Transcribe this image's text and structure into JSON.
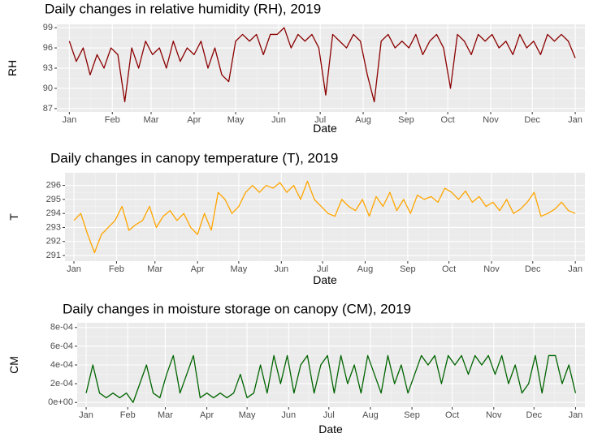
{
  "chart_data": [
    {
      "type": "line",
      "title": "Daily changes in relative humidity (RH), 2019",
      "x_label": "Date",
      "y_label": "RH",
      "x": [
        0,
        5,
        10,
        15,
        20,
        25,
        30,
        35,
        40,
        45,
        50,
        55,
        60,
        65,
        70,
        75,
        80,
        85,
        90,
        95,
        100,
        105,
        110,
        115,
        120,
        125,
        130,
        135,
        140,
        145,
        150,
        155,
        160,
        165,
        170,
        175,
        180,
        185,
        190,
        195,
        200,
        205,
        210,
        215,
        220,
        225,
        230,
        235,
        240,
        245,
        250,
        255,
        260,
        265,
        270,
        275,
        280,
        285,
        290,
        295,
        300,
        305,
        310,
        315,
        320,
        325,
        330,
        335,
        340,
        345,
        350,
        355,
        360,
        365
      ],
      "series": [
        {
          "name": "RH",
          "color": "#8b0000",
          "values": [
            97,
            94,
            96,
            92,
            95,
            93,
            96,
            95,
            88,
            96,
            93,
            97,
            95,
            96,
            93,
            97,
            94,
            96,
            95,
            97,
            93,
            96,
            92,
            91,
            97,
            98,
            97,
            98,
            95,
            98,
            98,
            99,
            96,
            98,
            97,
            98,
            96,
            89,
            98,
            97,
            96,
            98,
            97,
            92,
            88,
            97,
            98,
            96,
            97,
            96,
            98,
            95,
            97,
            98,
            96,
            90,
            98,
            97,
            95,
            98,
            97,
            98,
            96,
            97,
            95,
            98,
            96,
            97,
            95,
            98,
            97,
            98,
            97,
            94.5
          ]
        }
      ],
      "xlim": [
        -9,
        372
      ],
      "xticks": [
        {
          "value": 0,
          "label": "Jan"
        },
        {
          "value": 31,
          "label": "Feb"
        },
        {
          "value": 59,
          "label": "Mar"
        },
        {
          "value": 90,
          "label": "Apr"
        },
        {
          "value": 120,
          "label": "May"
        },
        {
          "value": 151,
          "label": "Jun"
        },
        {
          "value": 181,
          "label": "Jul"
        },
        {
          "value": 212,
          "label": "Aug"
        },
        {
          "value": 243,
          "label": "Sep"
        },
        {
          "value": 273,
          "label": "Oct"
        },
        {
          "value": 304,
          "label": "Nov"
        },
        {
          "value": 334,
          "label": "Dec"
        },
        {
          "value": 365,
          "label": "Jan"
        }
      ],
      "ylim": [
        86.5,
        99.5
      ],
      "yticks": [
        87,
        90,
        93,
        96,
        99
      ],
      "grid": true
    },
    {
      "type": "line",
      "title": "Daily changes in canopy temperature (T), 2019",
      "x_label": "Date",
      "y_label": "T",
      "x": [
        0,
        5,
        10,
        15,
        20,
        25,
        30,
        35,
        40,
        45,
        50,
        55,
        60,
        65,
        70,
        75,
        80,
        85,
        90,
        95,
        100,
        105,
        110,
        115,
        120,
        125,
        130,
        135,
        140,
        145,
        150,
        155,
        160,
        165,
        170,
        175,
        180,
        185,
        190,
        195,
        200,
        205,
        210,
        215,
        220,
        225,
        230,
        235,
        240,
        245,
        250,
        255,
        260,
        265,
        270,
        275,
        280,
        285,
        290,
        295,
        300,
        305,
        310,
        315,
        320,
        325,
        330,
        335,
        340,
        345,
        350,
        355,
        360,
        365
      ],
      "series": [
        {
          "name": "T",
          "color": "#ffa500",
          "values": [
            293.5,
            294,
            292.5,
            291.2,
            292.5,
            293,
            293.5,
            294.5,
            292.8,
            293.2,
            293.5,
            294.5,
            293,
            293.8,
            294.2,
            293.5,
            294,
            293,
            292.5,
            294,
            292.8,
            295.5,
            295,
            294,
            294.5,
            295.5,
            296,
            295.5,
            296,
            295.8,
            296.2,
            295.5,
            296,
            295,
            296.3,
            295,
            294.5,
            294,
            293.8,
            295,
            294.5,
            294.2,
            295,
            293.8,
            295.2,
            294.5,
            295.5,
            294.2,
            295,
            294,
            295.3,
            295,
            295.2,
            294.8,
            295.8,
            295.5,
            295,
            295.6,
            294.8,
            295.2,
            294.5,
            294.8,
            294.2,
            295,
            294,
            294.3,
            294.8,
            295.5,
            293.8,
            294,
            294.3,
            294.8,
            294.2,
            294
          ]
        }
      ],
      "xlim": [
        -6.5,
        372
      ],
      "xticks": [
        {
          "value": 0,
          "label": "Jan"
        },
        {
          "value": 31,
          "label": "Feb"
        },
        {
          "value": 59,
          "label": "Mar"
        },
        {
          "value": 90,
          "label": "Apr"
        },
        {
          "value": 120,
          "label": "May"
        },
        {
          "value": 151,
          "label": "Jun"
        },
        {
          "value": 181,
          "label": "Jul"
        },
        {
          "value": 212,
          "label": "Aug"
        },
        {
          "value": 243,
          "label": "Sep"
        },
        {
          "value": 273,
          "label": "Oct"
        },
        {
          "value": 304,
          "label": "Nov"
        },
        {
          "value": 334,
          "label": "Dec"
        },
        {
          "value": 365,
          "label": "Jan"
        }
      ],
      "ylim": [
        290.6,
        296.9
      ],
      "yticks": [
        291,
        292,
        293,
        294,
        295,
        296
      ],
      "grid": true
    },
    {
      "type": "line",
      "title": "Daily changes in moisture storage on canopy (CM), 2019",
      "x_label": "Date",
      "y_label": "CM",
      "x": [
        0,
        5,
        10,
        15,
        20,
        25,
        30,
        35,
        40,
        45,
        50,
        55,
        60,
        65,
        70,
        75,
        80,
        85,
        90,
        95,
        100,
        105,
        110,
        115,
        120,
        125,
        130,
        135,
        140,
        145,
        150,
        155,
        160,
        165,
        170,
        175,
        180,
        185,
        190,
        195,
        200,
        205,
        210,
        215,
        220,
        225,
        230,
        235,
        240,
        245,
        250,
        255,
        260,
        265,
        270,
        275,
        280,
        285,
        290,
        295,
        300,
        305,
        310,
        315,
        320,
        325,
        330,
        335,
        340,
        345,
        350,
        355,
        360,
        365
      ],
      "series": [
        {
          "name": "CM",
          "color": "#006400",
          "values": [
            0.0001,
            0.0004,
            0.0001,
            5e-05,
            0.0001,
            5e-05,
            0.0001,
            0,
            0.0002,
            0.0004,
            0.0001,
            5e-05,
            0.0003,
            0.0005,
            0.0001,
            0.0003,
            0.0005,
            5e-05,
            0.0001,
            5e-05,
            0.0001,
            5e-05,
            0.0001,
            0.0003,
            5e-05,
            0.0001,
            0.0004,
            0.0001,
            0.0005,
            0.0002,
            0.0005,
            0.0001,
            0.0004,
            0.0005,
            0.0001,
            0.0004,
            0.0005,
            0.0001,
            0.0005,
            0.0002,
            0.0004,
            0.0001,
            0.0005,
            0.0003,
            0.0001,
            0.0005,
            0.0002,
            0.0004,
            0.0001,
            0.0003,
            0.0005,
            0.0004,
            0.0005,
            0.0002,
            0.0005,
            0.0004,
            0.0005,
            0.0003,
            0.0005,
            0.0004,
            0.0005,
            0.0003,
            0.0005,
            0.0002,
            0.0004,
            0.0001,
            0.0002,
            0.0005,
            0.0001,
            0.0005,
            0.0005,
            0.0002,
            0.0004,
            0.0001
          ]
        }
      ],
      "xlim": [
        -6.7,
        372
      ],
      "xticks": [
        {
          "value": 0,
          "label": "Jan"
        },
        {
          "value": 31,
          "label": "Feb"
        },
        {
          "value": 59,
          "label": "Mar"
        },
        {
          "value": 90,
          "label": "Apr"
        },
        {
          "value": 120,
          "label": "May"
        },
        {
          "value": 151,
          "label": "Jun"
        },
        {
          "value": 181,
          "label": "Jul"
        },
        {
          "value": 212,
          "label": "Aug"
        },
        {
          "value": 243,
          "label": "Sep"
        },
        {
          "value": 273,
          "label": "Oct"
        },
        {
          "value": 304,
          "label": "Nov"
        },
        {
          "value": 334,
          "label": "Dec"
        },
        {
          "value": 365,
          "label": "Jan"
        }
      ],
      "ylim": [
        -5e-05,
        0.00085
      ],
      "yticks": [
        {
          "value": 0,
          "label": "0e+00"
        },
        {
          "value": 0.0002,
          "label": "2e-04"
        },
        {
          "value": 0.0004,
          "label": "4e-04"
        },
        {
          "value": 0.0006,
          "label": "6e-04"
        },
        {
          "value": 0.0008,
          "label": "8e-04"
        }
      ],
      "grid": true
    }
  ]
}
